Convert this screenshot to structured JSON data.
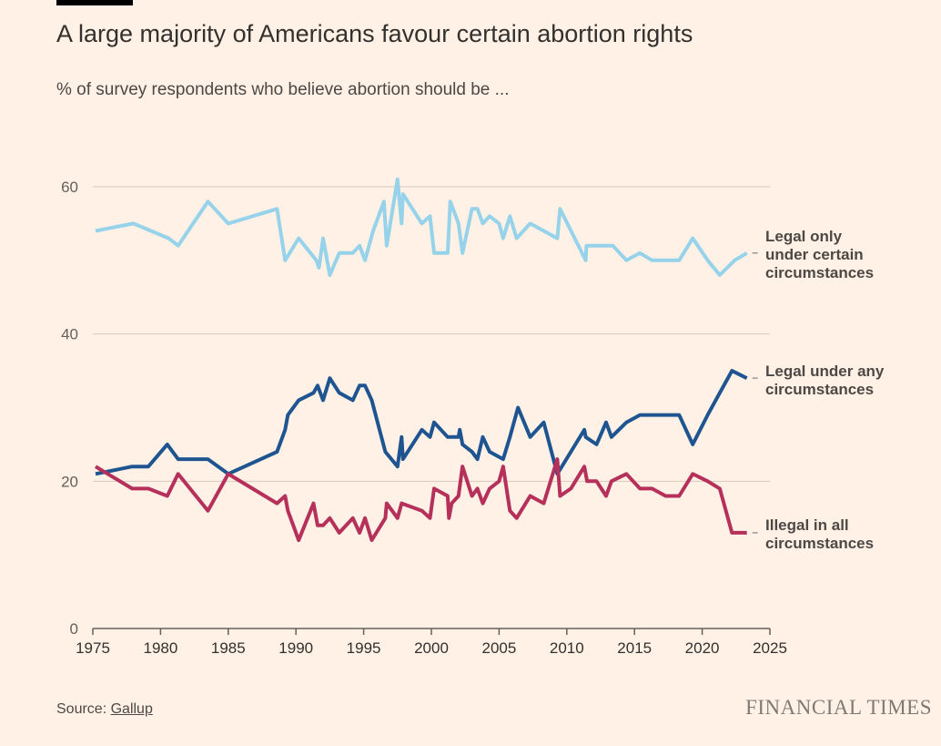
{
  "header": {
    "title": "A large majority of Americans favour certain abortion rights",
    "subtitle": "% of survey respondents who believe abortion should be ..."
  },
  "footer": {
    "source_prefix": "Source: ",
    "source_link": "Gallup",
    "logo": "FINANCIAL TIMES"
  },
  "colors": {
    "background": "#fff1e5",
    "certain": "#96d3ea",
    "any": "#1e5591",
    "illegal": "#b5305a",
    "grid": "#d9c8bc"
  },
  "chart_data": {
    "type": "line",
    "title": "A large majority of Americans favour certain abortion rights",
    "subtitle": "% of survey respondents who believe abortion should be ...",
    "xlim": [
      1975,
      2025
    ],
    "ylim": [
      0,
      60
    ],
    "x_ticks": [
      "1975",
      "1980",
      "1985",
      "1990",
      "1995",
      "2000",
      "2005",
      "2010",
      "2015",
      "2020",
      "2025"
    ],
    "y_ticks": [
      "0",
      "20",
      "40",
      "60"
    ],
    "grid": true,
    "legend": "direct labels right",
    "series": [
      {
        "name": "Legal only under certain circumstances",
        "color": "#96d3ea",
        "points": [
          [
            1975.2,
            54
          ],
          [
            1978,
            55
          ],
          [
            1980.6,
            53
          ],
          [
            1981.3,
            52
          ],
          [
            1983.5,
            58
          ],
          [
            1985,
            55
          ],
          [
            1988.6,
            57
          ],
          [
            1989.2,
            50
          ],
          [
            1990.2,
            53
          ],
          [
            1991.5,
            50
          ],
          [
            1991.7,
            49
          ],
          [
            1992,
            53
          ],
          [
            1992.5,
            48
          ],
          [
            1993.2,
            51
          ],
          [
            1994.2,
            51
          ],
          [
            1994.7,
            52
          ],
          [
            1995.1,
            50
          ],
          [
            1995.7,
            54
          ],
          [
            1996.5,
            58
          ],
          [
            1996.7,
            52
          ],
          [
            1997.5,
            61
          ],
          [
            1997.8,
            55
          ],
          [
            1997.9,
            59
          ],
          [
            1999.3,
            55
          ],
          [
            1999.9,
            56
          ],
          [
            2000.2,
            51
          ],
          [
            2001.2,
            51
          ],
          [
            2001.4,
            58
          ],
          [
            2002,
            55
          ],
          [
            2002.3,
            51
          ],
          [
            2003,
            57
          ],
          [
            2003.4,
            57
          ],
          [
            2003.8,
            55
          ],
          [
            2004.3,
            56
          ],
          [
            2005,
            55
          ],
          [
            2005.3,
            53
          ],
          [
            2005.8,
            56
          ],
          [
            2006.3,
            53
          ],
          [
            2007.3,
            55
          ],
          [
            2009.3,
            53
          ],
          [
            2009.5,
            57
          ],
          [
            2011.4,
            50
          ],
          [
            2011.45,
            52
          ],
          [
            2012.2,
            52
          ],
          [
            2013.4,
            52
          ],
          [
            2014.4,
            50
          ],
          [
            2015.4,
            51
          ],
          [
            2016.3,
            50
          ],
          [
            2018.3,
            50
          ],
          [
            2019.3,
            53
          ],
          [
            2020.4,
            50
          ],
          [
            2021.3,
            48
          ],
          [
            2022.4,
            50
          ],
          [
            2023.3,
            51
          ]
        ]
      },
      {
        "name": "Legal under any circumstances",
        "color": "#1e5591",
        "points": [
          [
            1975.2,
            21
          ],
          [
            1977.9,
            22
          ],
          [
            1979.1,
            22
          ],
          [
            1980.5,
            25
          ],
          [
            1981.3,
            23
          ],
          [
            1983.5,
            23
          ],
          [
            1985,
            21
          ],
          [
            1988.6,
            24
          ],
          [
            1989.2,
            27
          ],
          [
            1989.4,
            29
          ],
          [
            1990.2,
            31
          ],
          [
            1991.3,
            32
          ],
          [
            1991.6,
            33
          ],
          [
            1992,
            31
          ],
          [
            1992.5,
            34
          ],
          [
            1993.2,
            32
          ],
          [
            1994.2,
            31
          ],
          [
            1994.7,
            33
          ],
          [
            1995.1,
            33
          ],
          [
            1995.6,
            31
          ],
          [
            1996.6,
            24
          ],
          [
            1997.5,
            22
          ],
          [
            1997.8,
            26
          ],
          [
            1997.9,
            23
          ],
          [
            1999.3,
            27
          ],
          [
            1999.9,
            26
          ],
          [
            2000.2,
            28
          ],
          [
            2001.2,
            26
          ],
          [
            2002,
            26
          ],
          [
            2002.1,
            27
          ],
          [
            2002.3,
            25
          ],
          [
            2003,
            24
          ],
          [
            2003.4,
            23
          ],
          [
            2003.8,
            26
          ],
          [
            2004.3,
            24
          ],
          [
            2005.3,
            23
          ],
          [
            2005.8,
            26
          ],
          [
            2006.4,
            30
          ],
          [
            2007.3,
            26
          ],
          [
            2008.3,
            28
          ],
          [
            2009.3,
            21
          ],
          [
            2010.3,
            24
          ],
          [
            2011.3,
            27
          ],
          [
            2011.4,
            26
          ],
          [
            2012.2,
            25
          ],
          [
            2012.9,
            28
          ],
          [
            2013.3,
            26
          ],
          [
            2014.4,
            28
          ],
          [
            2015.4,
            29
          ],
          [
            2018.3,
            29
          ],
          [
            2019.3,
            25
          ],
          [
            2020.4,
            29
          ],
          [
            2021.3,
            32
          ],
          [
            2022.2,
            35
          ],
          [
            2023.3,
            34
          ]
        ]
      },
      {
        "name": "Illegal in all circumstances",
        "color": "#b5305a",
        "points": [
          [
            1975.2,
            22
          ],
          [
            1977.9,
            19
          ],
          [
            1979.1,
            19
          ],
          [
            1980.5,
            18
          ],
          [
            1981.3,
            21
          ],
          [
            1983.5,
            16
          ],
          [
            1985,
            21
          ],
          [
            1988.6,
            17
          ],
          [
            1989.2,
            18
          ],
          [
            1989.4,
            16
          ],
          [
            1990.2,
            12
          ],
          [
            1991.3,
            17
          ],
          [
            1991.6,
            14
          ],
          [
            1992,
            14
          ],
          [
            1992.5,
            15
          ],
          [
            1993.2,
            13
          ],
          [
            1994.2,
            15
          ],
          [
            1994.7,
            13
          ],
          [
            1995.1,
            15
          ],
          [
            1995.6,
            12
          ],
          [
            1996.6,
            15
          ],
          [
            1996.7,
            17
          ],
          [
            1997.5,
            15
          ],
          [
            1997.8,
            17
          ],
          [
            1999.3,
            16
          ],
          [
            1999.9,
            15
          ],
          [
            2000.2,
            19
          ],
          [
            2001.2,
            18
          ],
          [
            2001.3,
            15
          ],
          [
            2001.5,
            17
          ],
          [
            2002,
            18
          ],
          [
            2002.3,
            22
          ],
          [
            2003,
            18
          ],
          [
            2003.4,
            19
          ],
          [
            2003.8,
            17
          ],
          [
            2004.3,
            19
          ],
          [
            2005,
            20
          ],
          [
            2005.3,
            22
          ],
          [
            2005.8,
            16
          ],
          [
            2006.3,
            15
          ],
          [
            2007.3,
            18
          ],
          [
            2008.3,
            17
          ],
          [
            2009.3,
            23
          ],
          [
            2009.5,
            18
          ],
          [
            2010.3,
            19
          ],
          [
            2011.3,
            22
          ],
          [
            2011.5,
            20
          ],
          [
            2012.2,
            20
          ],
          [
            2012.9,
            18
          ],
          [
            2013.3,
            20
          ],
          [
            2014.4,
            21
          ],
          [
            2015.4,
            19
          ],
          [
            2016.3,
            19
          ],
          [
            2017.3,
            18
          ],
          [
            2018.3,
            18
          ],
          [
            2019.3,
            21
          ],
          [
            2020.4,
            20
          ],
          [
            2021.3,
            19
          ],
          [
            2022.2,
            13
          ],
          [
            2023.3,
            13
          ]
        ]
      }
    ]
  }
}
